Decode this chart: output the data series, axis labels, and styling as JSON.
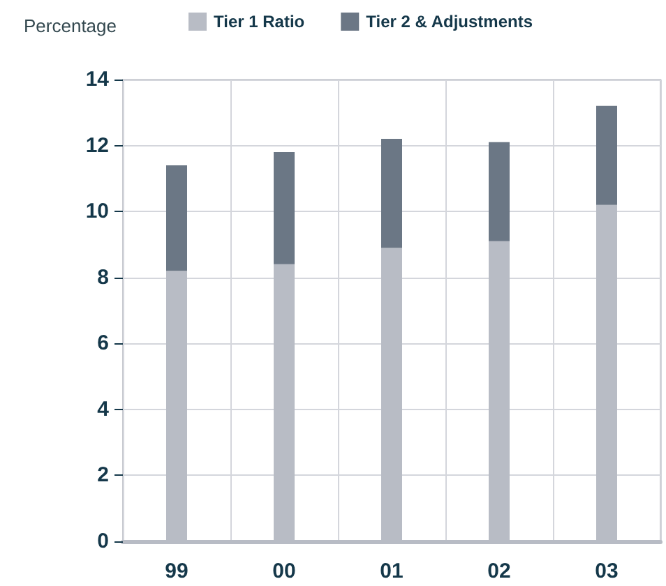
{
  "chart_data": {
    "type": "bar",
    "stacked": true,
    "ylabel": "Percentage",
    "categories": [
      "99",
      "00",
      "01",
      "02",
      "03"
    ],
    "series": [
      {
        "name": "Tier 1 Ratio",
        "color": "#b8bcc5",
        "values": [
          8.2,
          8.4,
          8.9,
          9.1,
          10.2
        ]
      },
      {
        "name": "Tier 2 & Adjustments",
        "color": "#6b7785",
        "values": [
          3.2,
          3.4,
          3.3,
          3.0,
          3.0
        ]
      }
    ],
    "ylim": [
      0,
      14
    ],
    "yticks": [
      0,
      2,
      4,
      6,
      8,
      10,
      12,
      14
    ],
    "grid": true,
    "legend": "top"
  }
}
